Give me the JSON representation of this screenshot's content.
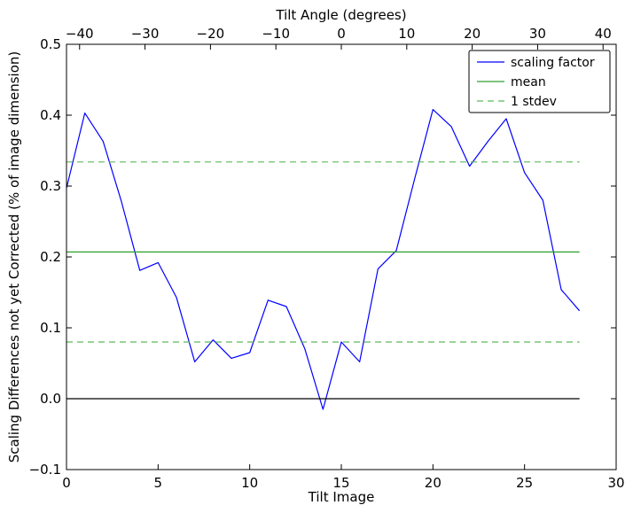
{
  "chart_data": {
    "type": "line",
    "xlabel": "Tilt Image",
    "ylabel": "Scaling Differences not yet Corrected (% of image dimension)",
    "top_xlabel": "Tilt Angle (degrees)",
    "xlim": [
      0,
      30
    ],
    "ylim": [
      -0.1,
      0.5
    ],
    "top_xlim": [
      -42,
      42
    ],
    "x_ticks": [
      0,
      5,
      10,
      15,
      20,
      25,
      30
    ],
    "y_ticks": [
      -0.1,
      0.0,
      0.1,
      0.2,
      0.3,
      0.4,
      0.5
    ],
    "top_x_ticks": [
      -40,
      -30,
      -20,
      -10,
      0,
      10,
      20,
      30,
      40
    ],
    "x_tick_labels": [
      "0",
      "5",
      "10",
      "15",
      "20",
      "25",
      "30"
    ],
    "y_tick_labels": [
      "−0.1",
      "0.0",
      "0.1",
      "0.2",
      "0.3",
      "0.4",
      "0.5"
    ],
    "top_x_tick_labels": [
      "−40",
      "−30",
      "−20",
      "−10",
      "0",
      "10",
      "20",
      "30",
      "40"
    ],
    "grid": false,
    "legend_position": "top-right",
    "series": [
      {
        "name": "scaling factor",
        "style": "solid",
        "color": "#0000ff",
        "x": [
          0,
          1,
          2,
          3,
          4,
          5,
          6,
          7,
          8,
          9,
          10,
          11,
          12,
          13,
          14,
          15,
          16,
          17,
          18,
          19,
          20,
          21,
          22,
          23,
          24,
          25,
          26,
          27,
          28
        ],
        "values": [
          0.297,
          0.403,
          0.363,
          0.278,
          0.181,
          0.192,
          0.143,
          0.052,
          0.083,
          0.057,
          0.065,
          0.139,
          0.13,
          0.071,
          -0.015,
          0.08,
          0.052,
          0.183,
          0.209,
          0.31,
          0.408,
          0.384,
          0.328,
          0.363,
          0.395,
          0.319,
          0.28,
          0.154,
          0.124
        ]
      },
      {
        "name": "mean",
        "style": "solid",
        "color": "#2ca02c",
        "x": [
          0,
          28
        ],
        "values": [
          0.207,
          0.207
        ]
      },
      {
        "name": "1 stdev",
        "style": "dashed",
        "color": "#5cb85c",
        "x": [
          0,
          28
        ],
        "values": [
          0.334,
          0.334
        ]
      },
      {
        "name": "",
        "style": "dashed",
        "color": "#5cb85c",
        "x": [
          0,
          28
        ],
        "values": [
          0.08,
          0.08
        ]
      },
      {
        "name": "",
        "style": "solid",
        "color": "#000000",
        "x": [
          0,
          28
        ],
        "values": [
          0.0,
          0.0
        ]
      }
    ],
    "legend_entries": [
      {
        "label": "scaling factor",
        "color": "#0000ff",
        "style": "solid"
      },
      {
        "label": "mean",
        "color": "#2ca02c",
        "style": "solid"
      },
      {
        "label": "1 stdev",
        "color": "#5cb85c",
        "style": "dashed"
      }
    ]
  }
}
